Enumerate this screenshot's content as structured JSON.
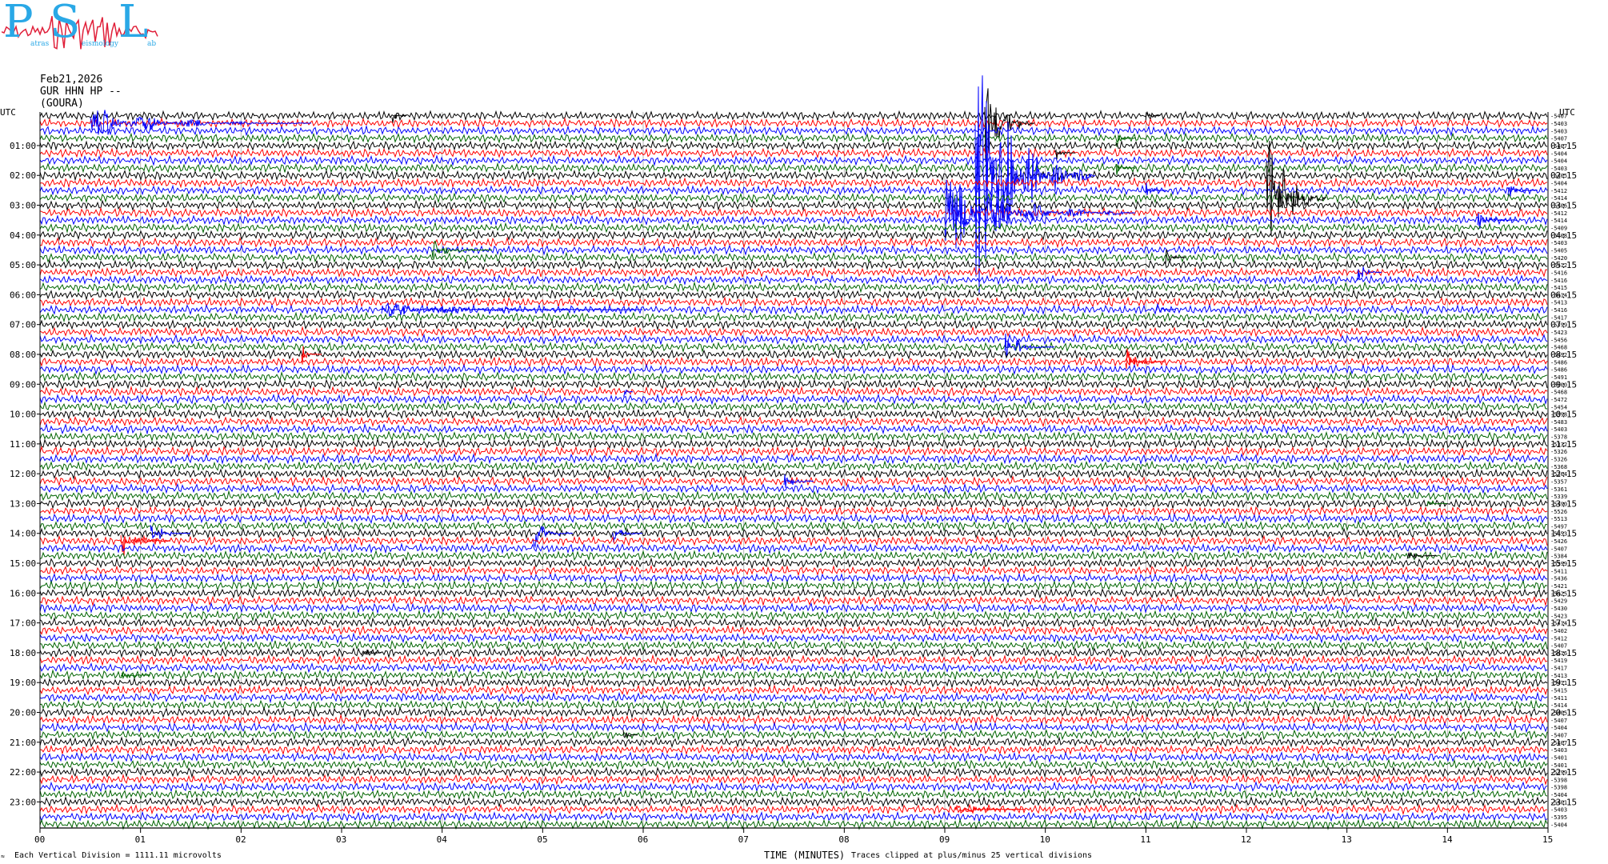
{
  "logo": {
    "letters": [
      "P",
      "S",
      "L"
    ],
    "tagline_parts": [
      "atras",
      "eismology",
      "ab"
    ],
    "colors": {
      "letters": "#2aa8e6",
      "trace": "#e0203a"
    }
  },
  "header": {
    "date": "Feb21,2026",
    "station": "GUR HHN HP --",
    "location": "(GOURA)"
  },
  "footer": {
    "scale_note": "Each Vertical Division = 1111.11 microvolts",
    "clip_note": "Traces clipped at plus/minus 25 vertical divisions",
    "corner_mark": "≈"
  },
  "chart_data": {
    "type": "line",
    "title": "",
    "xlabel": "TIME (MINUTES)",
    "ylabel": "",
    "xlim": [
      0,
      15
    ],
    "x_ticks": [
      "00",
      "01",
      "02",
      "03",
      "04",
      "05",
      "06",
      "07",
      "08",
      "09",
      "10",
      "11",
      "12",
      "13",
      "14",
      "15"
    ],
    "left_axis_title": "UTC",
    "right_axis_title": "UTC",
    "left_hour_labels": [
      "01:00",
      "02:00",
      "03:00",
      "04:00",
      "05:00",
      "06:00",
      "07:00",
      "08:00",
      "09:00",
      "10:00",
      "11:00",
      "12:00",
      "13:00",
      "14:00",
      "15:00",
      "16:00",
      "17:00",
      "18:00",
      "19:00",
      "20:00",
      "21:00",
      "22:00",
      "23:00"
    ],
    "right_hour_labels": [
      "01:15",
      "02:15",
      "03:15",
      "04:15",
      "05:15",
      "06:15",
      "07:15",
      "08:15",
      "09:15",
      "10:15",
      "11:15",
      "12:15",
      "13:15",
      "14:15",
      "15:15",
      "16:15",
      "17:15",
      "18:15",
      "19:15",
      "20:15",
      "21:15",
      "22:15",
      "23:15"
    ],
    "trace_colors": [
      "#000000",
      "#ff0000",
      "#0000ff",
      "#006400"
    ],
    "trace_count": 96,
    "trace_offsets": [
      "-5407",
      "-5403",
      "-5403",
      "-5407",
      "-5407",
      "-5404",
      "-5404",
      "-5403",
      "-5405",
      "-5404",
      "-5412",
      "-5414",
      "-5406",
      "-5412",
      "-5414",
      "-5409",
      "-5408",
      "-5403",
      "-5405",
      "-5420",
      "-5412",
      "-5416",
      "-5416",
      "-5415",
      "-5414",
      "-5413",
      "-5416",
      "-5417",
      "-5399",
      "-5423",
      "-5456",
      "-5468",
      "-5492",
      "-5486",
      "-5486",
      "-5491",
      "-5500",
      "-5468",
      "-5472",
      "-5454",
      "-5398",
      "-5483",
      "-5403",
      "-5378",
      "-5332",
      "-5326",
      "-5326",
      "-5368",
      "-5364",
      "-5357",
      "-5361",
      "-5339",
      "-5490",
      "-5526",
      "-5513",
      "-5497",
      "-5453",
      "-5426",
      "-5407",
      "-5384",
      "-5399",
      "-5411",
      "-5436",
      "-5421",
      "-5425",
      "-5429",
      "-5430",
      "-5423",
      "-5414",
      "-5402",
      "-5412",
      "-5407",
      "-5416",
      "-5419",
      "-5417",
      "-5413",
      "-5411",
      "-5415",
      "-5411",
      "-5414",
      "-5405",
      "-5407",
      "-5404",
      "-5407",
      "-5407",
      "-5403",
      "-5401",
      "-5401",
      "-5399",
      "-5398",
      "-5398",
      "-5404",
      "-5401",
      "-5403",
      "-5395",
      "-5404"
    ],
    "events": [
      {
        "trace": 1,
        "minute": 0.5,
        "amp": 2.5,
        "color_idx": 2,
        "dur": 2.2
      },
      {
        "trace": 0,
        "minute": 3.5,
        "amp": 1.6,
        "color_idx": 0,
        "dur": 0.15
      },
      {
        "trace": 0,
        "minute": 11.0,
        "amp": 1.4,
        "color_idx": 0,
        "dur": 0.15
      },
      {
        "trace": 1,
        "minute": 9.4,
        "amp": 8.0,
        "color_idx": 0,
        "dur": 0.5
      },
      {
        "trace": 3,
        "minute": 10.7,
        "amp": 1.5,
        "color_idx": 3,
        "dur": 0.2
      },
      {
        "trace": 5,
        "minute": 10.1,
        "amp": 1.3,
        "color_idx": 0,
        "dur": 0.2
      },
      {
        "trace": 7,
        "minute": 10.7,
        "amp": 1.4,
        "color_idx": 3,
        "dur": 0.2
      },
      {
        "trace": 8,
        "minute": 9.3,
        "amp": 22.0,
        "color_idx": 2,
        "dur": 1.2
      },
      {
        "trace": 10,
        "minute": 11.0,
        "amp": 1.3,
        "color_idx": 2,
        "dur": 0.2
      },
      {
        "trace": 10,
        "minute": 14.6,
        "amp": 1.3,
        "color_idx": 2,
        "dur": 0.3
      },
      {
        "trace": 11,
        "minute": 12.2,
        "amp": 13.0,
        "color_idx": 0,
        "dur": 0.6
      },
      {
        "trace": 13,
        "minute": 9.0,
        "amp": 6.5,
        "color_idx": 2,
        "dur": 1.9
      },
      {
        "trace": 14,
        "minute": 14.3,
        "amp": 1.6,
        "color_idx": 2,
        "dur": 0.4
      },
      {
        "trace": 18,
        "minute": 3.9,
        "amp": 1.6,
        "color_idx": 3,
        "dur": 0.6
      },
      {
        "trace": 19,
        "minute": 11.2,
        "amp": 2.2,
        "color_idx": 0,
        "dur": 0.2
      },
      {
        "trace": 21,
        "minute": 13.1,
        "amp": 2.0,
        "color_idx": 2,
        "dur": 0.25
      },
      {
        "trace": 26,
        "minute": 3.4,
        "amp": 1.2,
        "color_idx": 2,
        "dur": 2.6
      },
      {
        "trace": 26,
        "minute": 11.1,
        "amp": 1.3,
        "color_idx": 2,
        "dur": 0.2
      },
      {
        "trace": 31,
        "minute": 9.6,
        "amp": 2.5,
        "color_idx": 2,
        "dur": 0.5
      },
      {
        "trace": 32,
        "minute": 2.6,
        "amp": 1.9,
        "color_idx": 1,
        "dur": 0.2
      },
      {
        "trace": 33,
        "minute": 10.8,
        "amp": 2.3,
        "color_idx": 1,
        "dur": 0.4
      },
      {
        "trace": 37,
        "minute": 5.8,
        "amp": 1.2,
        "color_idx": 2,
        "dur": 0.1
      },
      {
        "trace": 49,
        "minute": 7.4,
        "amp": 2.2,
        "color_idx": 2,
        "dur": 0.3
      },
      {
        "trace": 52,
        "minute": 13.8,
        "amp": 1.2,
        "color_idx": 3,
        "dur": 0.2
      },
      {
        "trace": 56,
        "minute": 1.1,
        "amp": 2.2,
        "color_idx": 2,
        "dur": 0.4
      },
      {
        "trace": 56,
        "minute": 4.9,
        "amp": 3.0,
        "color_idx": 2,
        "dur": 0.4
      },
      {
        "trace": 56,
        "minute": 5.7,
        "amp": 1.6,
        "color_idx": 2,
        "dur": 0.3
      },
      {
        "trace": 57,
        "minute": 0.8,
        "amp": 3.0,
        "color_idx": 1,
        "dur": 0.5
      },
      {
        "trace": 59,
        "minute": 13.6,
        "amp": 1.1,
        "color_idx": 0,
        "dur": 0.3
      },
      {
        "trace": 72,
        "minute": 3.2,
        "amp": 1.4,
        "color_idx": 0,
        "dur": 0.2
      },
      {
        "trace": 75,
        "minute": 0.8,
        "amp": 1.3,
        "color_idx": 3,
        "dur": 0.3
      },
      {
        "trace": 83,
        "minute": 5.8,
        "amp": 1.1,
        "color_idx": 0,
        "dur": 0.15
      },
      {
        "trace": 93,
        "minute": 9.1,
        "amp": 1.0,
        "color_idx": 1,
        "dur": 0.7
      }
    ]
  }
}
